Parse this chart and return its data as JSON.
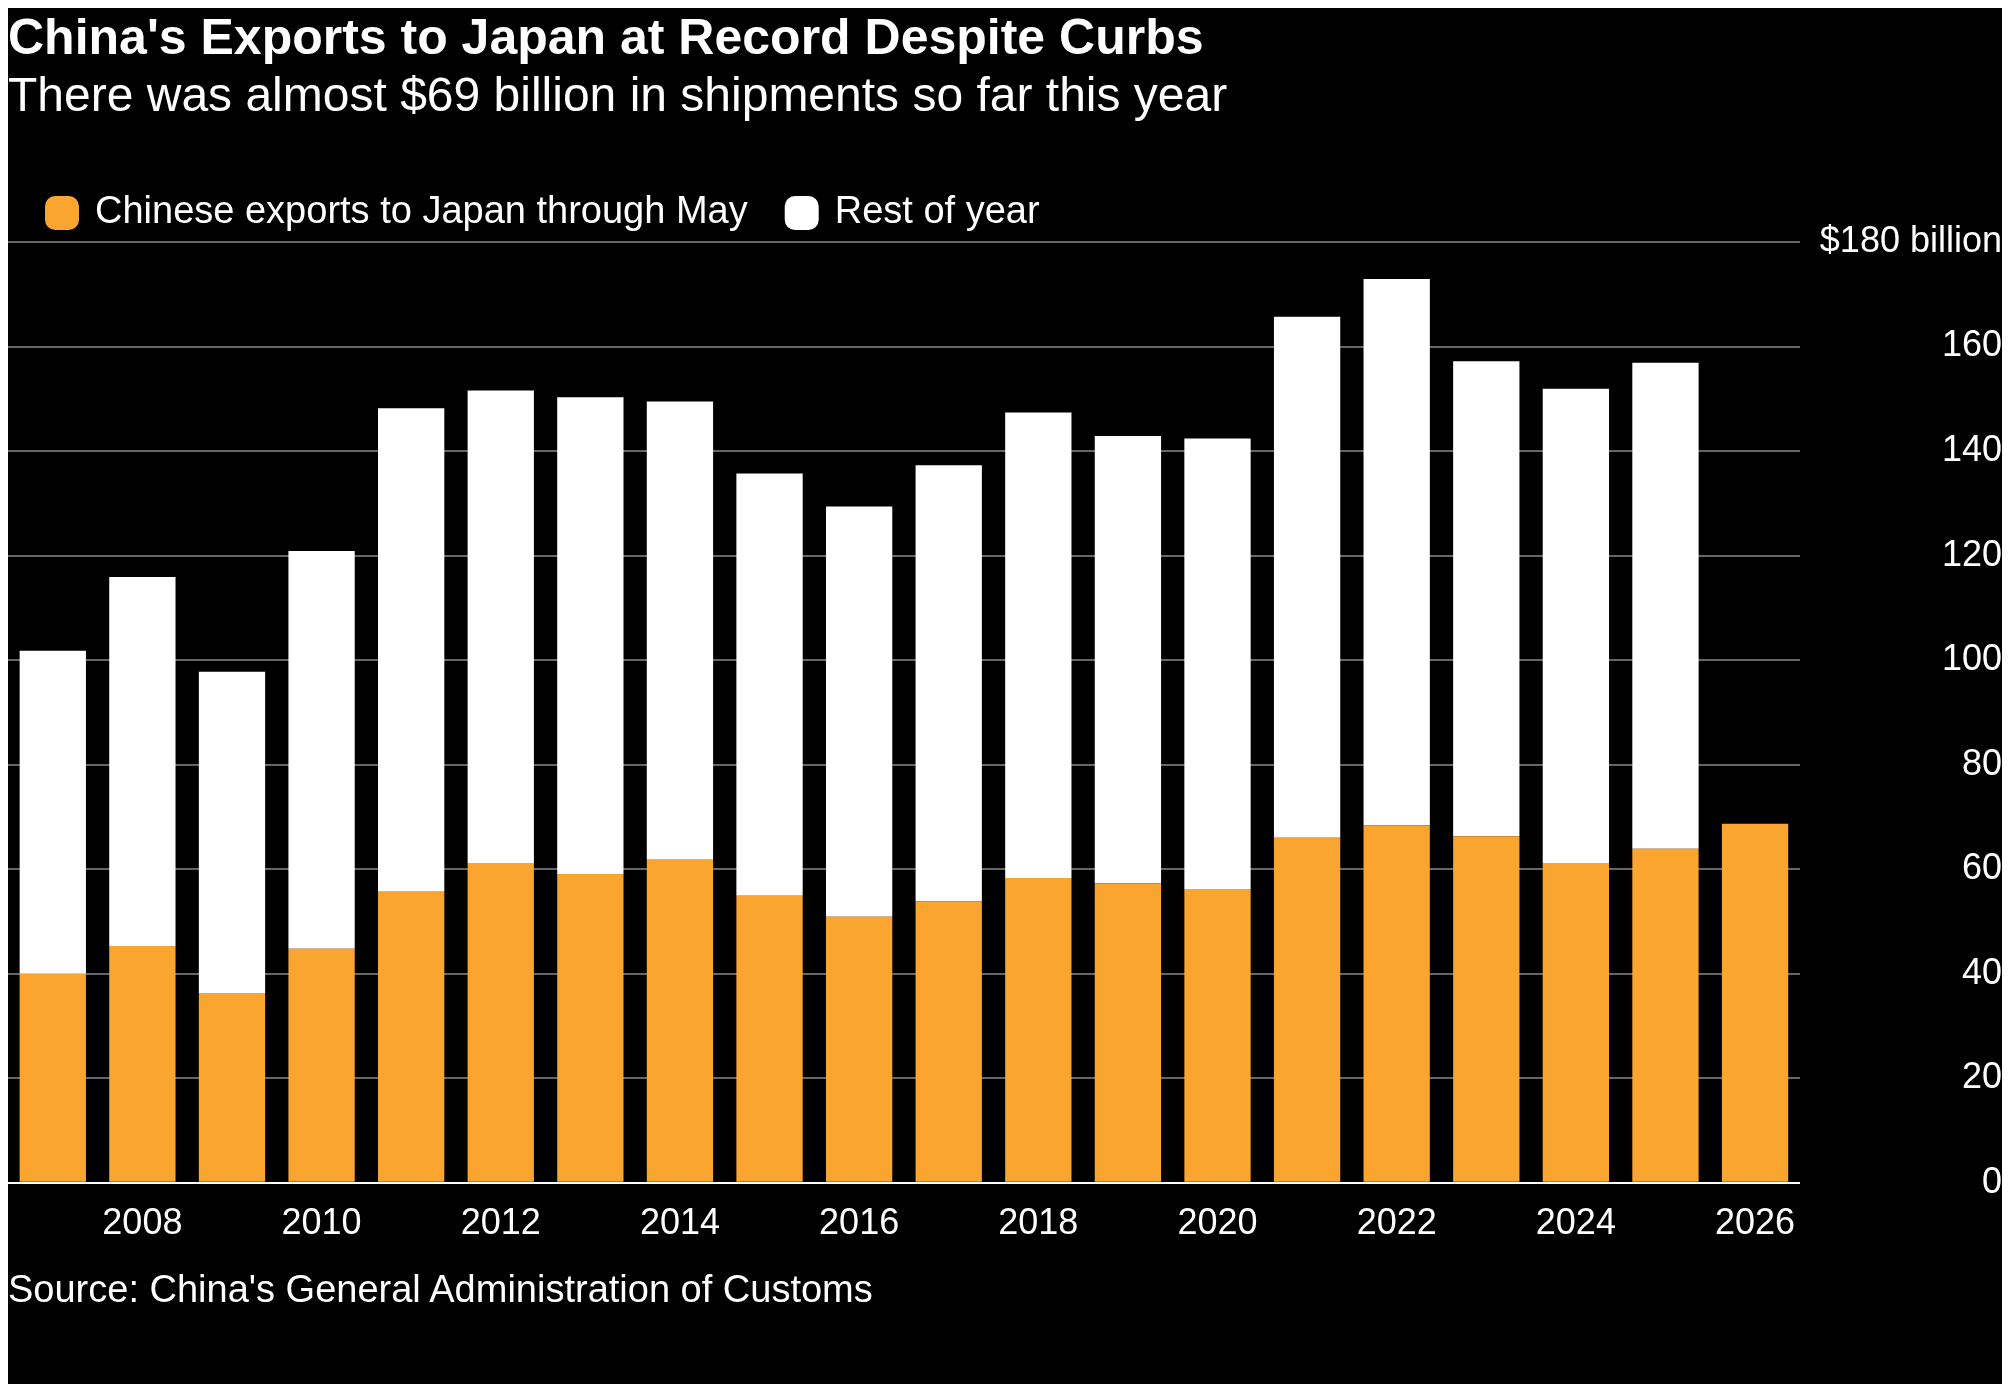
{
  "chart_data": {
    "type": "bar",
    "title": "China's Exports to Japan at Record Despite Curbs",
    "subtitle": "There was almost $69 billion in shipments so far this year",
    "categories": [
      null,
      "2008",
      null,
      "2010",
      null,
      "2012",
      null,
      "2014",
      null,
      "2016",
      null,
      "2018",
      null,
      "2020",
      null,
      "2022",
      null,
      "2024",
      null,
      "2026"
    ],
    "stacked": true,
    "series": [
      {
        "name": "Chinese exports to Japan through May",
        "color": "#fba531",
        "values": [
          40,
          45.3,
          36.3,
          44.8,
          55.7,
          61.2,
          59.1,
          61.8,
          54.9,
          50.9,
          53.8,
          58.3,
          57.3,
          56.2,
          66,
          68.4,
          66.3,
          61.2,
          63.9,
          68.7
        ]
      },
      {
        "name": "Rest of year",
        "color": "#ffffff",
        "values": [
          61.8,
          70.6,
          61.5,
          76.1,
          92.5,
          90.4,
          91.2,
          87.7,
          80.8,
          78.5,
          83.5,
          89.1,
          85.6,
          86.2,
          99.7,
          104.5,
          90.9,
          90.7,
          93,
          null
        ]
      }
    ],
    "ylim": [
      0,
      180
    ],
    "yticks": [
      0,
      20,
      40,
      60,
      80,
      100,
      120,
      140,
      160,
      {
        "value": 180,
        "label": "$180 billion"
      }
    ],
    "grid": "y",
    "legend": "top left",
    "annotations": [
      "Source: China's General Administration of Customs"
    ]
  }
}
